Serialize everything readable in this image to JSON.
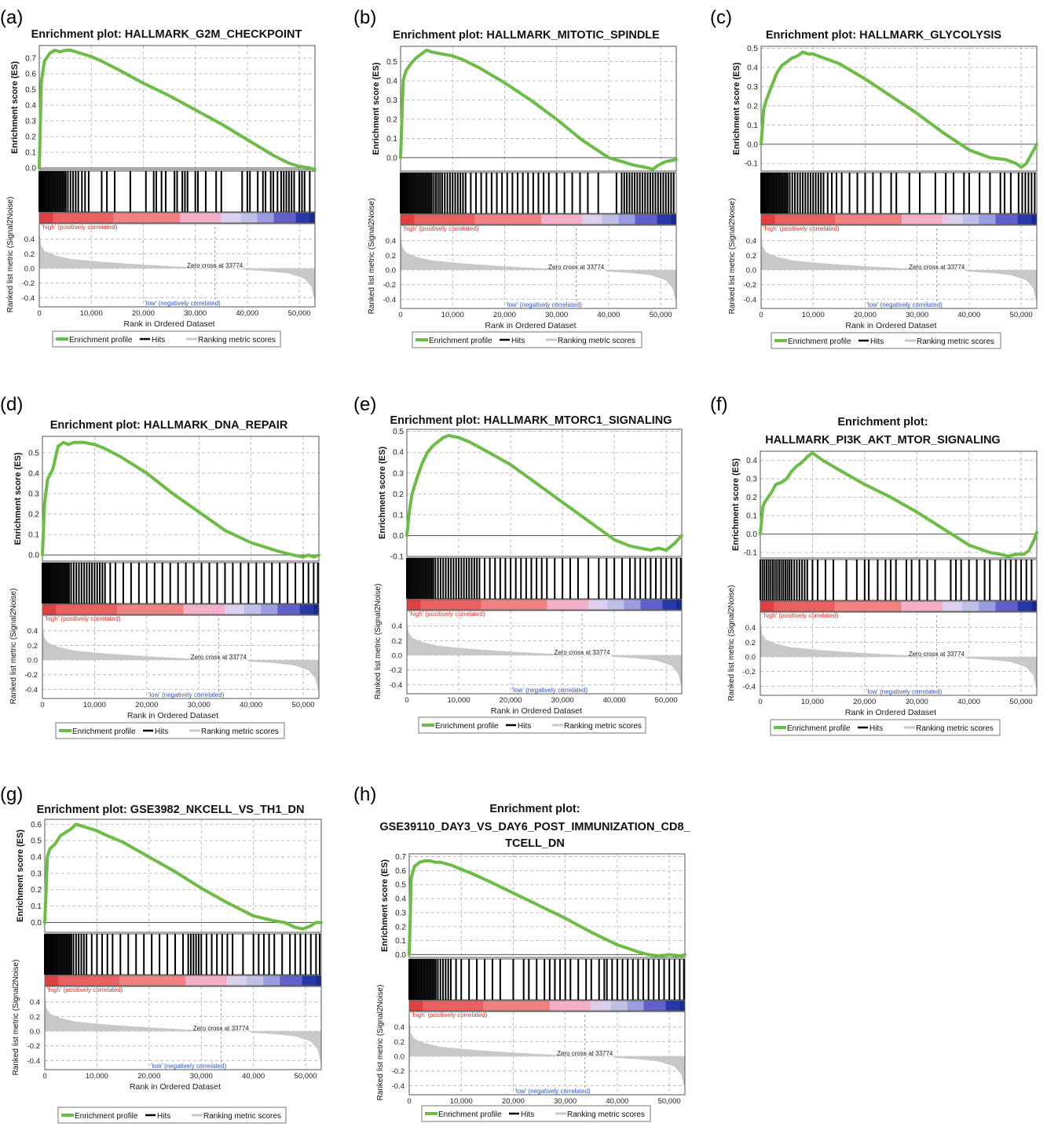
{
  "figure": {
    "panel_labels": [
      "(a)",
      "(b)",
      "(c)",
      "(d)",
      "(e)",
      "(f)",
      "(g)",
      "(h)"
    ],
    "es_axis_label": "Enrichment score (ES)",
    "metric_axis_label": "Ranked list metric (Signal2Noise)",
    "x_axis_label": "Rank in Ordered Dataset",
    "high_label": "'high' (positively correlated)",
    "low_label": "'low' (negatively correlated)",
    "zero_cross_label": "Zero cross at 33774",
    "legend": {
      "enrichment_profile": "Enrichment profile",
      "hits": "Hits",
      "ranking_metric": "Ranking metric scores"
    },
    "colors": {
      "es_line": "#6cbd45",
      "hits": "#000000",
      "metric": "#c8c8c8",
      "grid": "#b0b0b0",
      "high_text": "#d9302c",
      "low_text": "#3355cc",
      "heat_band": [
        "#e04040",
        "#e86060",
        "#f08282",
        "#f4b0c8",
        "#dcd0ee",
        "#c0c0e6",
        "#9c9ce0",
        "#6060c8",
        "#2838a8"
      ]
    }
  },
  "chart_data": [
    {
      "panel": "(a)",
      "type": "line",
      "title": [
        "Enrichment plot: HALLMARK_G2M_CHECKPOINT"
      ],
      "x": [
        0,
        400,
        1000,
        2000,
        3000,
        4000,
        5000,
        6000,
        7000,
        8000,
        10000,
        12000,
        15000,
        20000,
        25000,
        30000,
        35000,
        40000,
        45000,
        48000,
        50000,
        52000,
        53000
      ],
      "y": [
        0,
        0.55,
        0.68,
        0.73,
        0.75,
        0.74,
        0.75,
        0.75,
        0.74,
        0.73,
        0.71,
        0.68,
        0.63,
        0.54,
        0.46,
        0.37,
        0.28,
        0.18,
        0.08,
        0.03,
        0.01,
        0.0,
        -0.01
      ],
      "ylim": [
        -0.01,
        0.78
      ],
      "yticks": [
        "0.0",
        "0.1",
        "0.2",
        "0.3",
        "0.4",
        "0.5",
        "0.6",
        "0.7"
      ],
      "xticks": [
        "0",
        "10,000",
        "20,000",
        "30,000",
        "40,000",
        "50,000"
      ],
      "hits": [
        0,
        300,
        600,
        900,
        1200,
        1500,
        1800,
        2100,
        2400,
        2700,
        3000,
        3300,
        3600,
        3900,
        4200,
        4500,
        4800,
        5100,
        5500,
        6000,
        6500,
        7000,
        7500,
        8200,
        8800,
        9500,
        12000,
        13000,
        14500,
        17500,
        20500,
        22000,
        22500,
        23500,
        24300,
        26000,
        26500,
        27500,
        28000,
        28500,
        30000,
        30500,
        32000,
        34000,
        35000,
        39000,
        40000,
        40500,
        42000,
        43000,
        43500,
        44500,
        45000,
        45800,
        46500,
        47000,
        47500,
        48000,
        48500,
        49000,
        50000,
        50500,
        51000,
        52000
      ]
    },
    {
      "panel": "(b)",
      "type": "line",
      "title": [
        "Enrichment plot: HALLMARK_MITOTIC_SPINDLE"
      ],
      "x": [
        0,
        500,
        1000,
        2000,
        3000,
        4000,
        5000,
        6000,
        8000,
        10000,
        12000,
        15000,
        20000,
        25000,
        30000,
        35000,
        40000,
        45000,
        47000,
        48500,
        49500,
        51000,
        53000
      ],
      "y": [
        0,
        0.4,
        0.45,
        0.49,
        0.52,
        0.54,
        0.56,
        0.55,
        0.54,
        0.53,
        0.51,
        0.47,
        0.39,
        0.3,
        0.2,
        0.09,
        0.0,
        -0.04,
        -0.05,
        -0.06,
        -0.04,
        -0.02,
        -0.01
      ],
      "ylim": [
        -0.07,
        0.58
      ],
      "yticks": [
        "0.0",
        "0.1",
        "0.2",
        "0.3",
        "0.4",
        "0.5"
      ],
      "xticks": [
        "0",
        "10,000",
        "20,000",
        "30,000",
        "40,000",
        "50,000"
      ],
      "hits": [
        0,
        300,
        600,
        900,
        1200,
        1500,
        1800,
        2100,
        2400,
        2700,
        3000,
        3300,
        3600,
        3900,
        4200,
        4500,
        4800,
        5100,
        5400,
        5700,
        6000,
        6400,
        6800,
        7200,
        7600,
        8000,
        8500,
        9000,
        9500,
        10000,
        10500,
        11000,
        11500,
        12000,
        12500,
        13500,
        14500,
        15500,
        16500,
        17500,
        18500,
        19500,
        20500,
        21500,
        22500,
        23500,
        24500,
        25500,
        26500,
        27500,
        28500,
        30000,
        31500,
        33000,
        34500,
        36000,
        38000,
        41500,
        42500,
        43000,
        43500,
        44000,
        44500,
        45000,
        45500,
        46000,
        46500,
        47000,
        47500,
        48000,
        48500,
        49000,
        49500,
        50000,
        50500,
        51000,
        51500,
        52000,
        52500
      ]
    },
    {
      "panel": "(c)",
      "type": "line",
      "title": [
        "Enrichment plot: HALLMARK_GLYCOLYSIS"
      ],
      "x": [
        0,
        500,
        1000,
        2000,
        3000,
        4000,
        5000,
        6000,
        7000,
        8000,
        9000,
        10000,
        12000,
        15000,
        20000,
        25000,
        30000,
        35000,
        40000,
        44000,
        47000,
        49000,
        50000,
        51000,
        52000,
        53000
      ],
      "y": [
        0,
        0.18,
        0.23,
        0.3,
        0.37,
        0.41,
        0.43,
        0.45,
        0.46,
        0.48,
        0.47,
        0.47,
        0.45,
        0.42,
        0.34,
        0.25,
        0.16,
        0.06,
        -0.03,
        -0.07,
        -0.08,
        -0.1,
        -0.12,
        -0.1,
        -0.05,
        0.0
      ],
      "ylim": [
        -0.14,
        0.51
      ],
      "yticks": [
        "-0.1",
        "0.0",
        "0.1",
        "0.2",
        "0.3",
        "0.4",
        "0.5"
      ],
      "xticks": [
        "0",
        "10,000",
        "20,000",
        "30,000",
        "40,000",
        "50,000"
      ],
      "hits": [
        0,
        300,
        600,
        900,
        1200,
        1500,
        1800,
        2100,
        2400,
        2700,
        3000,
        3300,
        3600,
        3900,
        4200,
        4500,
        4800,
        5100,
        5500,
        6000,
        6500,
        7000,
        7500,
        8000,
        8500,
        9000,
        9500,
        10000,
        10500,
        11000,
        11500,
        12000,
        12800,
        13600,
        14500,
        15500,
        17000,
        18500,
        20000,
        21500,
        23000,
        25000,
        26000,
        28500,
        30500,
        33500,
        35500,
        37000,
        39000,
        40000,
        42000,
        44000,
        46000,
        46800,
        48000,
        49500,
        50200,
        50800,
        51400,
        52000,
        52600
      ]
    },
    {
      "panel": "(d)",
      "type": "line",
      "title": [
        "Enrichment plot: HALLMARK_DNA_REPAIR"
      ],
      "x": [
        0,
        400,
        1000,
        2000,
        3000,
        4000,
        5000,
        6000,
        7000,
        8000,
        10000,
        12000,
        15000,
        20000,
        25000,
        30000,
        35000,
        40000,
        45000,
        48000,
        50000,
        51000,
        52000,
        53000
      ],
      "y": [
        0,
        0.25,
        0.37,
        0.42,
        0.53,
        0.55,
        0.54,
        0.55,
        0.55,
        0.55,
        0.54,
        0.52,
        0.48,
        0.4,
        0.3,
        0.21,
        0.12,
        0.06,
        0.02,
        0.0,
        -0.01,
        0.0,
        -0.01,
        0.0
      ],
      "ylim": [
        -0.03,
        0.58
      ],
      "yticks": [
        "0.0",
        "0.1",
        "0.2",
        "0.3",
        "0.4",
        "0.5"
      ],
      "xticks": [
        "0",
        "10,000",
        "20,000",
        "30,000",
        "40,000",
        "50,000"
      ],
      "hits": [
        0,
        300,
        600,
        900,
        1200,
        1500,
        1800,
        2100,
        2400,
        2700,
        3000,
        3300,
        3600,
        3900,
        4200,
        4500,
        4800,
        5100,
        5500,
        6000,
        6500,
        7000,
        7500,
        8000,
        8500,
        9000,
        9500,
        10000,
        10500,
        11000,
        11500,
        12000,
        13000,
        14000,
        15500,
        17000,
        18500,
        20000,
        21500,
        23000,
        24500,
        26000,
        27500,
        29000,
        30500,
        32000,
        33500,
        35000,
        36500,
        38000,
        39500,
        41000,
        42500,
        44000,
        45500,
        47000,
        48500,
        50000,
        51000,
        52000,
        52800
      ]
    },
    {
      "panel": "(e)",
      "type": "line",
      "title": [
        "Enrichment plot: HALLMARK_MTORC1_SIGNALING"
      ],
      "x": [
        0,
        500,
        1000,
        2000,
        3000,
        4000,
        5000,
        6000,
        7000,
        8000,
        10000,
        12000,
        15000,
        20000,
        25000,
        30000,
        35000,
        40000,
        43000,
        45000,
        47000,
        48500,
        50000,
        51500,
        53000
      ],
      "y": [
        0,
        0.12,
        0.2,
        0.28,
        0.35,
        0.4,
        0.43,
        0.45,
        0.47,
        0.48,
        0.47,
        0.45,
        0.41,
        0.34,
        0.25,
        0.16,
        0.07,
        -0.02,
        -0.05,
        -0.06,
        -0.07,
        -0.06,
        -0.07,
        -0.04,
        0.0
      ],
      "ylim": [
        -0.1,
        0.51
      ],
      "yticks": [
        "-0.1",
        "0.0",
        "0.1",
        "0.2",
        "0.3",
        "0.4",
        "0.5"
      ],
      "xticks": [
        "0",
        "10,000",
        "20,000",
        "30,000",
        "40,000",
        "50,000"
      ],
      "hits": [
        0,
        300,
        600,
        900,
        1200,
        1500,
        1800,
        2100,
        2400,
        2700,
        3000,
        3300,
        3600,
        3900,
        4200,
        4500,
        4800,
        5100,
        5500,
        6000,
        6500,
        7000,
        7500,
        8000,
        8500,
        9000,
        9500,
        10000,
        10500,
        11000,
        11500,
        12000,
        12500,
        13000,
        13500,
        14000,
        15000,
        16000,
        17000,
        18000,
        19000,
        20000,
        21000,
        22000,
        23000,
        24000,
        25000,
        26000,
        27000,
        28500,
        30000,
        31500,
        33000,
        35000,
        37000,
        38500,
        40000,
        41500,
        43000,
        44000,
        45000,
        46000,
        47000,
        48000,
        49000,
        50000,
        51000,
        52000,
        52800
      ]
    },
    {
      "panel": "(f)",
      "type": "line",
      "title": [
        "Enrichment plot:",
        "HALLMARK_PI3K_AKT_MTOR_SIGNALING"
      ],
      "x": [
        0,
        500,
        1000,
        2000,
        3000,
        4000,
        5000,
        6000,
        7000,
        8000,
        9000,
        10000,
        12000,
        15000,
        20000,
        25000,
        30000,
        35000,
        40000,
        44000,
        46000,
        47500,
        49000,
        50500,
        51500,
        52500,
        53000
      ],
      "y": [
        0,
        0.15,
        0.18,
        0.22,
        0.27,
        0.28,
        0.3,
        0.34,
        0.37,
        0.39,
        0.42,
        0.44,
        0.4,
        0.35,
        0.27,
        0.2,
        0.12,
        0.03,
        -0.06,
        -0.1,
        -0.11,
        -0.12,
        -0.11,
        -0.11,
        -0.09,
        -0.03,
        0.01
      ],
      "ylim": [
        -0.13,
        0.45
      ],
      "yticks": [
        "-0.1",
        "0.0",
        "0.1",
        "0.2",
        "0.3",
        "0.4"
      ],
      "xticks": [
        "0",
        "10,000",
        "20,000",
        "30,000",
        "40,000",
        "50,000"
      ],
      "hits": [
        0,
        400,
        800,
        1200,
        1600,
        2000,
        2400,
        2800,
        3200,
        3600,
        4000,
        4400,
        4800,
        5200,
        5600,
        6000,
        6500,
        7000,
        7500,
        8000,
        8500,
        9000,
        10000,
        11000,
        12500,
        14000,
        16500,
        18500,
        20000,
        20800,
        22500,
        24000,
        25000,
        26000,
        28000,
        29000,
        30500,
        32000,
        33500,
        36500,
        37500,
        38500,
        40000,
        41500,
        43000,
        44000,
        46000,
        47000,
        48000,
        49000,
        50000,
        51000,
        52000
      ]
    },
    {
      "panel": "(g)",
      "type": "line",
      "title": [
        "Enrichment plot: GSE3982_NKCELL_VS_TH1_DN"
      ],
      "x": [
        0,
        500,
        1000,
        2000,
        3000,
        4000,
        5000,
        6000,
        7000,
        8000,
        10000,
        12000,
        15000,
        20000,
        25000,
        30000,
        35000,
        40000,
        44000,
        46000,
        48000,
        49500,
        51000,
        52000,
        53000
      ],
      "y": [
        0,
        0.4,
        0.45,
        0.48,
        0.53,
        0.55,
        0.57,
        0.6,
        0.59,
        0.58,
        0.56,
        0.53,
        0.49,
        0.4,
        0.31,
        0.21,
        0.12,
        0.04,
        0.01,
        0.0,
        -0.03,
        -0.04,
        -0.02,
        0.0,
        0.0
      ],
      "ylim": [
        -0.06,
        0.63
      ],
      "yticks": [
        "0.0",
        "0.1",
        "0.2",
        "0.3",
        "0.4",
        "0.5",
        "0.6"
      ],
      "xticks": [
        "0",
        "10,000",
        "20,000",
        "30,000",
        "40,000",
        "50,000"
      ],
      "hits": [
        0,
        300,
        600,
        900,
        1200,
        1500,
        1800,
        2100,
        2400,
        2700,
        3000,
        3300,
        3600,
        3900,
        4200,
        4500,
        4800,
        5100,
        5500,
        6000,
        6500,
        7000,
        7500,
        8000,
        9000,
        10000,
        11000,
        12000,
        13000,
        14500,
        16000,
        17500,
        19000,
        20500,
        22000,
        23500,
        25000,
        26500,
        27500,
        28000,
        28500,
        29000,
        29500,
        30000,
        31000,
        32000,
        33000,
        34000,
        35000,
        36000,
        38000,
        40000,
        41000,
        42000,
        43000,
        44000,
        45500,
        47000,
        48000,
        49000,
        50000,
        51000,
        52000,
        52700
      ]
    },
    {
      "panel": "(h)",
      "type": "line",
      "title": [
        "Enrichment plot:",
        "GSE39110_DAY3_VS_DAY6_POST_IMMUNIZATION_CD8_",
        "TCELL_DN"
      ],
      "x": [
        0,
        400,
        1000,
        2000,
        3000,
        4000,
        5000,
        6000,
        8000,
        10000,
        12000,
        15000,
        20000,
        25000,
        30000,
        35000,
        40000,
        44000,
        46000,
        48000,
        50000,
        52000,
        53000
      ],
      "y": [
        0,
        0.55,
        0.63,
        0.66,
        0.67,
        0.67,
        0.66,
        0.66,
        0.64,
        0.61,
        0.58,
        0.53,
        0.44,
        0.35,
        0.26,
        0.16,
        0.07,
        0.02,
        0.0,
        -0.01,
        0.0,
        -0.01,
        0.0
      ],
      "ylim": [
        -0.02,
        0.72
      ],
      "yticks": [
        "0.0",
        "0.1",
        "0.2",
        "0.3",
        "0.4",
        "0.5",
        "0.6",
        "0.7"
      ],
      "xticks": [
        "0",
        "10,000",
        "20,000",
        "30,000",
        "40,000",
        "50,000"
      ],
      "hits": [
        0,
        300,
        600,
        900,
        1200,
        1500,
        1800,
        2100,
        2400,
        2700,
        3000,
        3300,
        3600,
        3900,
        4200,
        4500,
        4800,
        5100,
        5500,
        6000,
        6500,
        7000,
        7500,
        8000,
        9000,
        10000,
        11500,
        13000,
        14500,
        16000,
        17500,
        20000,
        22000,
        23000,
        24500,
        26000,
        27000,
        28000,
        29000,
        30000,
        31000,
        32500,
        34000,
        35000,
        36500,
        37500,
        38000,
        39000,
        40000,
        41000,
        42000,
        43000,
        44000,
        45000,
        46000,
        47000,
        48000,
        49000,
        50000,
        51000,
        52000,
        52800
      ]
    }
  ]
}
